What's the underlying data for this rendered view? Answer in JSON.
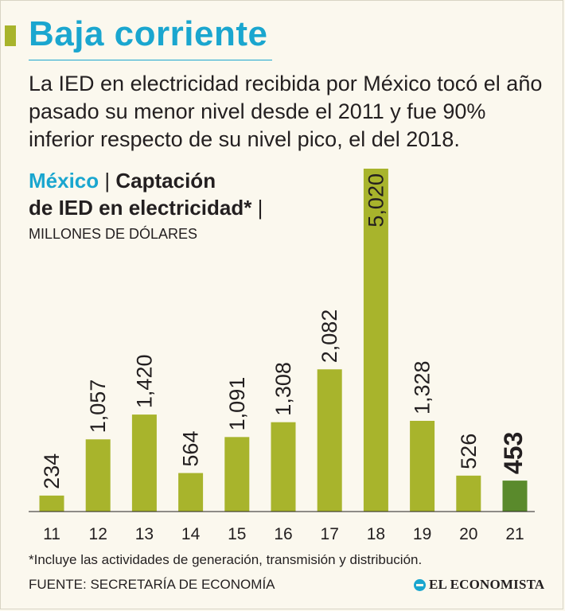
{
  "title": "Baja corriente",
  "subtitle": "La IED en electricidad recibida por México tocó el año pasado su menor nivel desde el 2011 y fue 90% inferior respecto de su nivel pico, el del 2018.",
  "chart_head": {
    "country": "México",
    "separator": "|",
    "line1": "Captación",
    "line2": "de IED en electricidad*",
    "trailing": "|"
  },
  "units": "MILLONES DE DÓLARES",
  "footnote": "*Incluye las actividades de generación, transmisión y distribución.",
  "source": "FUENTE: SECRETARÍA DE ECONOMÍA",
  "brand": "EL ECONOMISTA",
  "colors": {
    "accent": "#1aa6cf",
    "bar": "#a8b42c",
    "bar_highlight": "#5a8a2c",
    "text": "#231f20"
  },
  "chart_data": {
    "type": "bar",
    "title": "Captación de IED en electricidad",
    "xlabel": "",
    "ylabel": "Millones de dólares",
    "categories": [
      "11",
      "12",
      "13",
      "14",
      "15",
      "16",
      "17",
      "18",
      "19",
      "20",
      "21"
    ],
    "values": [
      234,
      1057,
      1420,
      564,
      1091,
      1308,
      2082,
      5020,
      1328,
      526,
      453
    ],
    "labels": [
      "234",
      "1,057",
      "1,420",
      "564",
      "1,091",
      "1,308",
      "2,082",
      "5,020",
      "1,328",
      "526",
      "453"
    ],
    "highlight_index": 10,
    "ylim": [
      0,
      5020
    ],
    "grid": false,
    "legend": "none"
  }
}
